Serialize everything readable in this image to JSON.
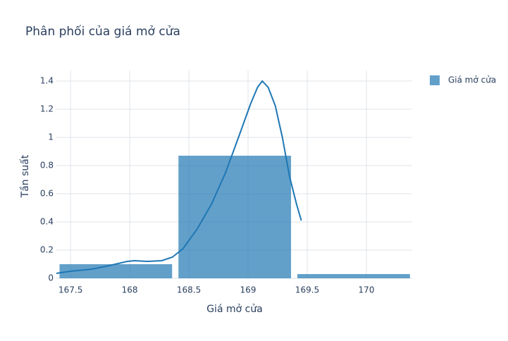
{
  "chart_data": {
    "type": "histogram",
    "title": "Phân phối của giá mở cửa",
    "x_label": "Giá mở cửa",
    "y_label": "Tần suất",
    "bins": [
      167.38,
      168.385,
      169.39,
      170.395
    ],
    "series": [
      {
        "name": "Giá mở cửa",
        "color": "#1f77b4",
        "values": [
          0.1,
          0.87,
          0.03
        ]
      }
    ],
    "line": {
      "color": "#1f77b4",
      "x": [
        167.38,
        167.5,
        167.68,
        167.8,
        167.98,
        168.04,
        168.15,
        168.27,
        168.36,
        168.45,
        168.57,
        168.69,
        168.81,
        168.93,
        169.02,
        169.08,
        169.12,
        169.17,
        169.23,
        169.29,
        169.35,
        169.41,
        169.45
      ],
      "y": [
        0.035,
        0.05,
        0.065,
        0.085,
        0.12,
        0.125,
        0.12,
        0.125,
        0.15,
        0.21,
        0.35,
        0.525,
        0.75,
        1.025,
        1.235,
        1.355,
        1.4,
        1.355,
        1.225,
        1.0,
        0.725,
        0.525,
        0.41
      ]
    },
    "xlim": [
      167.38,
      170.387
    ],
    "ylim": [
      0,
      1.475
    ],
    "xticks": [
      167.5,
      168,
      168.5,
      169,
      169.5,
      170
    ],
    "yticks": [
      0,
      0.2,
      0.4,
      0.6,
      0.8,
      1,
      1.2,
      1.4
    ],
    "grid": true,
    "legend": "top-right"
  }
}
